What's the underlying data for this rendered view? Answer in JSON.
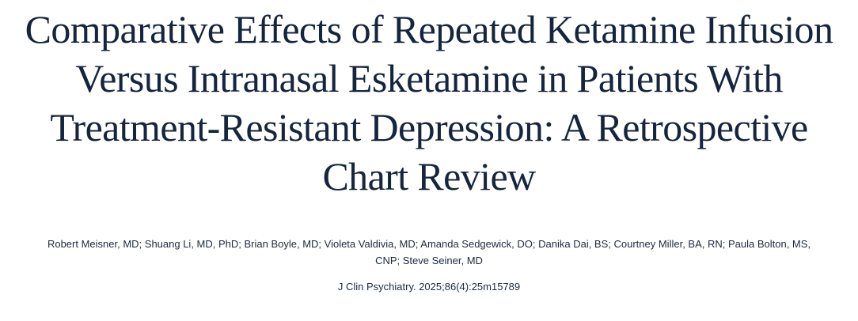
{
  "article": {
    "title": "Comparative Effects of Repeated Ketamine Infusion Versus Intranasal Esketamine in Patients With Treatment-Resistant Depression: A Retrospective Chart Review",
    "authors": "Robert Meisner, MD; Shuang Li, MD, PhD; Brian Boyle, MD; Violeta Valdivia, MD; Amanda Sedgewick, DO; Danika Dai, BS; Courtney Miller, BA, RN; Paula Bolton, MS, CNP; Steve Seiner, MD",
    "citation": "J Clin Psychiatry. 2025;86(4):25m15789"
  },
  "colors": {
    "text": "#14253d"
  }
}
